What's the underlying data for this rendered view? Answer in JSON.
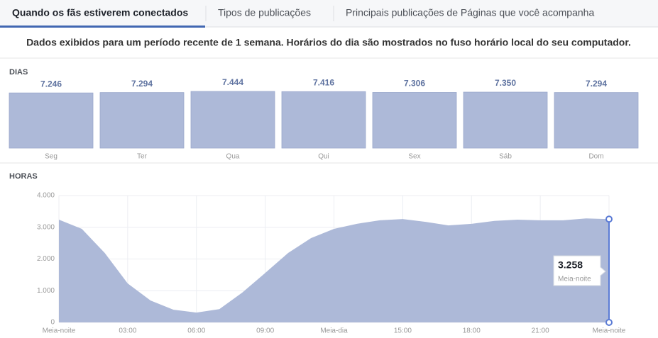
{
  "tabs": [
    "Quando os fãs estiverem conectados",
    "Tipos de publicações",
    "Principais publicações de Páginas que você acompanha"
  ],
  "notice": "Dados exibidos para um período recente de 1 semana. Horários do dia são mostrados no fuso horário local do seu computador.",
  "chart_data": [
    {
      "type": "bar",
      "title": "DIAS",
      "categories": [
        "Seg",
        "Ter",
        "Qua",
        "Qui",
        "Sex",
        "Sáb",
        "Dom"
      ],
      "values": [
        7246,
        7294,
        7444,
        7416,
        7306,
        7350,
        7294
      ],
      "value_labels": [
        "7.246",
        "7.294",
        "7.444",
        "7.416",
        "7.306",
        "7.350",
        "7.294"
      ],
      "color": "#adb9d8"
    },
    {
      "type": "area",
      "title": "HORAS",
      "x": [
        0,
        1,
        2,
        3,
        4,
        5,
        6,
        7,
        8,
        9,
        10,
        11,
        12,
        13,
        14,
        15,
        16,
        17,
        18,
        19,
        20,
        21,
        22,
        23,
        24
      ],
      "values": [
        3240,
        2950,
        2190,
        1230,
        690,
        400,
        310,
        420,
        940,
        1560,
        2190,
        2660,
        2950,
        3110,
        3220,
        3260,
        3170,
        3060,
        3110,
        3200,
        3240,
        3220,
        3220,
        3280,
        3258
      ],
      "value_labels": [
        null,
        null,
        null,
        null,
        null,
        null,
        null,
        null,
        null,
        null,
        null,
        null,
        null,
        null,
        null,
        null,
        null,
        null,
        null,
        null,
        null,
        null,
        null,
        null,
        "3.258"
      ],
      "color": "#adb9d8",
      "xlim": [
        0,
        24
      ],
      "xticks": [
        {
          "value": 0,
          "label": "Meia-noite"
        },
        {
          "value": 3,
          "label": "03:00"
        },
        {
          "value": 6,
          "label": "06:00"
        },
        {
          "value": 9,
          "label": "09:00"
        },
        {
          "value": 12,
          "label": "Meia-dia"
        },
        {
          "value": 15,
          "label": "15:00"
        },
        {
          "value": 18,
          "label": "18:00"
        },
        {
          "value": 21,
          "label": "21:00"
        },
        {
          "value": 24,
          "label": "Meia-noite"
        }
      ],
      "ylim": [
        0,
        4000
      ],
      "yticks": [
        0,
        {
          "value": 1000,
          "label": "1.000"
        },
        {
          "value": 2000,
          "label": "2.000"
        },
        {
          "value": 3000,
          "label": "3.000"
        },
        {
          "value": 4000,
          "label": "4.000"
        }
      ],
      "grid": true
    }
  ]
}
